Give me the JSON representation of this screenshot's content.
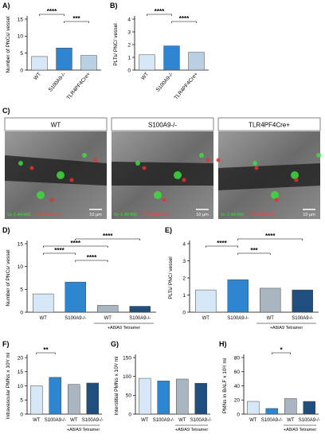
{
  "chart_data": [
    {
      "type": "bar",
      "panel": "A)",
      "y_label": "Number of PNCs/ vessel",
      "categories": [
        "WT",
        "S100A9-/-",
        "TLR4PF4Cre+"
      ],
      "values": [
        4,
        6.5,
        4.3
      ],
      "colors": [
        "#d6e8f7",
        "#2f86d0",
        "#b9cfe4"
      ],
      "ylim": [
        0,
        15
      ],
      "yticks": [
        0,
        5,
        10,
        15
      ],
      "label_rotation": -50,
      "significance": [
        {
          "from": 0,
          "to": 1,
          "label": "****"
        },
        {
          "from": 1,
          "to": 2,
          "label": "***"
        }
      ]
    },
    {
      "type": "bar",
      "panel": "B)",
      "y_label": "PLTs/ PNC/ vessel",
      "categories": [
        "WT",
        "S100A9-/-",
        "TLR4PF4Cre+"
      ],
      "values": [
        1.2,
        1.9,
        1.4
      ],
      "colors": [
        "#d6e8f7",
        "#2f86d0",
        "#b9cfe4"
      ],
      "ylim": [
        0,
        4
      ],
      "yticks": [
        0,
        1,
        2,
        3,
        4
      ],
      "label_rotation": -50,
      "significance": [
        {
          "from": 0,
          "to": 1,
          "label": "****"
        },
        {
          "from": 1,
          "to": 2,
          "label": "****"
        }
      ]
    },
    {
      "type": "bar",
      "panel": "D)",
      "y_label": "Number of PNCs/ vessel",
      "categories": [
        "WT",
        "S100A9-/-",
        "WT",
        "S100A9-/-"
      ],
      "values": [
        4,
        6.6,
        1.5,
        1.3
      ],
      "colors": [
        "#d6e8f7",
        "#2f86d0",
        "#a9b6c2",
        "#1f4f7f"
      ],
      "ylim": [
        0,
        15
      ],
      "yticks": [
        0,
        5,
        10,
        15
      ],
      "group_label": "+A8/A9 Tetramer",
      "significance": [
        {
          "from": 1,
          "to": 3,
          "label": "****"
        },
        {
          "from": 0,
          "to": 2,
          "label": "****"
        },
        {
          "from": 0,
          "to": 1,
          "label": "****"
        },
        {
          "from": 1,
          "to": 2,
          "label": "****"
        }
      ]
    },
    {
      "type": "bar",
      "panel": "E)",
      "y_label": "PLTs/ PNC/ vessel",
      "categories": [
        "WT",
        "S100A9-/-",
        "WT",
        "S100A9-/-"
      ],
      "values": [
        1.3,
        1.9,
        1.4,
        1.3
      ],
      "colors": [
        "#d6e8f7",
        "#2f86d0",
        "#a9b6c2",
        "#1f4f7f"
      ],
      "ylim": [
        0,
        4
      ],
      "yticks": [
        0,
        1,
        2,
        3,
        4
      ],
      "group_label": "+A8/A9 Tetramer",
      "significance": [
        {
          "from": 1,
          "to": 3,
          "label": "****"
        },
        {
          "from": 0,
          "to": 1,
          "label": "****"
        },
        {
          "from": 1,
          "to": 2,
          "label": "***"
        }
      ]
    },
    {
      "type": "bar",
      "panel": "F)",
      "y_label": "Intravascular PMNs x 10³/ ml",
      "categories": [
        "WT",
        "S100A9-/-",
        "WT",
        "S100A9-/-"
      ],
      "values": [
        10,
        13,
        10.5,
        11
      ],
      "colors": [
        "#d6e8f7",
        "#2f86d0",
        "#a9b6c2",
        "#1f4f7f"
      ],
      "ylim": [
        0,
        20
      ],
      "yticks": [
        0,
        5,
        10,
        15,
        20
      ],
      "group_label": "+A8/A9 Tetramer",
      "significance": [
        {
          "from": 0,
          "to": 1,
          "label": "**"
        }
      ]
    },
    {
      "type": "bar",
      "panel": "G)",
      "y_label": "Interstitial PMNs x 10³/ ml",
      "categories": [
        "WT",
        "S100A9-/-",
        "WT",
        "S100A9-/-"
      ],
      "values": [
        95,
        88,
        93,
        82
      ],
      "colors": [
        "#d6e8f7",
        "#2f86d0",
        "#a9b6c2",
        "#1f4f7f"
      ],
      "ylim": [
        0,
        150
      ],
      "yticks": [
        0,
        50,
        100,
        150
      ],
      "group_label": "+A8/A9 Tetramer",
      "significance": []
    },
    {
      "type": "bar",
      "panel": "H)",
      "y_label": "PMNs in BALF x 10³/ ml",
      "categories": [
        "WT",
        "S100A9-/-",
        "WT",
        "S100A9-/-"
      ],
      "values": [
        18,
        8,
        22,
        18
      ],
      "colors": [
        "#d6e8f7",
        "#2f86d0",
        "#a9b6c2",
        "#1f4f7f"
      ],
      "ylim": [
        0,
        80
      ],
      "yticks": [
        0,
        20,
        40,
        60,
        80
      ],
      "group_label": "+A8/A9 Tetramer",
      "significance": [
        {
          "from": 1,
          "to": 2,
          "label": "*"
        }
      ]
    }
  ],
  "micrographs": {
    "panel": "C)",
    "titles": [
      "WT",
      "S100A9-/-",
      "TLR4PF4Cre+"
    ],
    "stain_green": "Gr-1-AF488",
    "stain_red": "CD41-BV421",
    "scale": "10 µm"
  }
}
